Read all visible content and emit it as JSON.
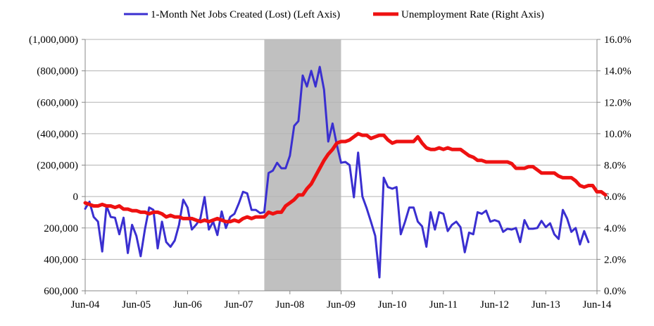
{
  "chart_data": {
    "type": "line",
    "legend": {
      "placement": "top",
      "entries": [
        {
          "label": "1-Month Net Jobs Created (Lost) (Left Axis)",
          "color": "#3a2fd0"
        },
        {
          "label": "Unemployment Rate (Right Axis)",
          "color": "#ee1111"
        }
      ]
    },
    "left_axis": {
      "ylim": [
        600000,
        -1000000
      ],
      "tick_values": [
        -1000000,
        -800000,
        -600000,
        -400000,
        -200000,
        0,
        200000,
        400000,
        600000
      ],
      "tick_labels": [
        "(1,000,000)",
        "(800,000)",
        "(600,000)",
        "(400,000)",
        "(200,000)",
        "0",
        "200,000",
        "400,000",
        "600,000"
      ]
    },
    "right_axis": {
      "ylim": [
        0,
        16
      ],
      "tick_values": [
        16,
        14,
        12,
        10,
        8,
        6,
        4,
        2,
        0
      ],
      "tick_labels": [
        "16.0%",
        "14.0%",
        "12.0%",
        "10.0%",
        "8.0%",
        "6.0%",
        "4.0%",
        "2.0%",
        "0.0%"
      ]
    },
    "x_axis": {
      "start": "2004-06",
      "end": "2014-06",
      "tick_labels": [
        "Jun-04",
        "Jun-05",
        "Jun-06",
        "Jun-07",
        "Jun-08",
        "Jun-09",
        "Jun-10",
        "Jun-11",
        "Jun-12",
        "Jun-13",
        "Jun-14"
      ]
    },
    "grid": "horizontal",
    "shaded_period": {
      "start": "2007-12",
      "end": "2009-06",
      "color": "#c0c0c0"
    },
    "series": [
      {
        "name": "1-Month Net Jobs Created (Lost) (Left Axis)",
        "axis": "left",
        "color": "#3a2fd0",
        "start": "2004-06",
        "values": [
          78000,
          33000,
          130000,
          160000,
          350000,
          60000,
          130000,
          135000,
          240000,
          135000,
          360000,
          180000,
          250000,
          380000,
          210000,
          70000,
          85000,
          330000,
          160000,
          290000,
          320000,
          280000,
          180000,
          20000,
          70000,
          210000,
          180000,
          140000,
          3000,
          210000,
          160000,
          245000,
          95000,
          200000,
          130000,
          110000,
          45000,
          -30000,
          -20000,
          85000,
          85000,
          105000,
          100000,
          -150000,
          -165000,
          -215000,
          -180000,
          -180000,
          -260000,
          -450000,
          -480000,
          -770000,
          -700000,
          -800000,
          -700000,
          -825000,
          -680000,
          -350000,
          -465000,
          -330000,
          -215000,
          -220000,
          -200000,
          5000,
          -280000,
          0,
          75000,
          160000,
          250000,
          515000,
          -120000,
          -60000,
          -50000,
          -60000,
          240000,
          160000,
          70000,
          70000,
          160000,
          190000,
          320000,
          100000,
          210000,
          100000,
          110000,
          220000,
          180000,
          160000,
          195000,
          355000,
          230000,
          240000,
          100000,
          110000,
          90000,
          160000,
          150000,
          160000,
          225000,
          205000,
          210000,
          200000,
          290000,
          150000,
          205000,
          205000,
          200000,
          155000,
          195000,
          170000,
          240000,
          270000,
          85000,
          140000,
          225000,
          200000,
          305000,
          220000,
          290000
        ]
      },
      {
        "name": "Unemployment Rate (Right Axis)",
        "axis": "right",
        "color": "#ee1111",
        "start": "2004-06",
        "values": [
          5.6,
          5.5,
          5.4,
          5.4,
          5.5,
          5.4,
          5.4,
          5.3,
          5.4,
          5.2,
          5.2,
          5.1,
          5.1,
          5.0,
          5.0,
          4.9,
          5.0,
          5.0,
          4.9,
          4.7,
          4.8,
          4.7,
          4.7,
          4.6,
          4.6,
          4.6,
          4.5,
          4.4,
          4.5,
          4.4,
          4.5,
          4.6,
          4.5,
          4.4,
          4.4,
          4.5,
          4.4,
          4.6,
          4.7,
          4.6,
          4.7,
          4.7,
          4.7,
          5.0,
          4.9,
          5.0,
          5.0,
          5.4,
          5.6,
          5.8,
          6.1,
          6.1,
          6.5,
          6.8,
          7.3,
          7.8,
          8.3,
          8.7,
          9.0,
          9.4,
          9.5,
          9.5,
          9.6,
          9.8,
          10.0,
          9.9,
          9.9,
          9.7,
          9.8,
          9.9,
          9.9,
          9.6,
          9.4,
          9.5,
          9.5,
          9.5,
          9.5,
          9.5,
          9.8,
          9.4,
          9.1,
          9.0,
          9.0,
          9.1,
          9.0,
          9.1,
          9.0,
          9.0,
          9.0,
          8.8,
          8.6,
          8.5,
          8.3,
          8.3,
          8.2,
          8.2,
          8.2,
          8.2,
          8.2,
          8.2,
          8.1,
          7.8,
          7.8,
          7.8,
          7.9,
          7.9,
          7.7,
          7.5,
          7.5,
          7.5,
          7.5,
          7.3,
          7.2,
          7.2,
          7.2,
          7.0,
          6.7,
          6.6,
          6.7,
          6.7,
          6.3,
          6.3,
          6.1
        ]
      }
    ]
  }
}
